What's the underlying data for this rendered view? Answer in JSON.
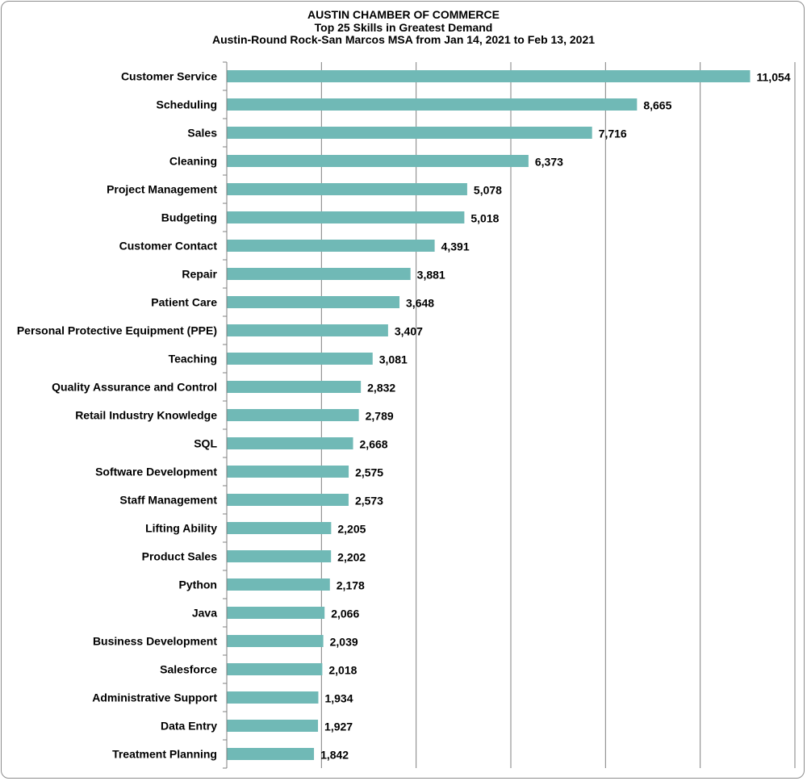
{
  "chart_data": {
    "type": "bar",
    "orientation": "horizontal",
    "title": "AUSTIN CHAMBER OF COMMERCE",
    "subtitle": "Top 25 Skills in Greatest Demand",
    "subtitle2": "Austin-Round Rock-San Marcos MSA from Jan 14, 2021 to Feb 13, 2021",
    "xlabel": "",
    "ylabel": "",
    "xlim": [
      0,
      12000
    ],
    "grid": true,
    "bar_color": "#70b9b6",
    "categories": [
      "Customer Service",
      "Scheduling",
      "Sales",
      "Cleaning",
      "Project Management",
      "Budgeting",
      "Customer Contact",
      "Repair",
      "Patient Care",
      "Personal Protective Equipment (PPE)",
      "Teaching",
      "Quality Assurance and Control",
      "Retail Industry Knowledge",
      "SQL",
      "Software Development",
      "Staff Management",
      "Lifting Ability",
      "Product Sales",
      "Python",
      "Java",
      "Business Development",
      "Salesforce",
      "Administrative Support",
      "Data Entry",
      "Treatment Planning"
    ],
    "values": [
      11054,
      8665,
      7716,
      6373,
      5078,
      5018,
      4391,
      3881,
      3648,
      3407,
      3081,
      2832,
      2789,
      2668,
      2575,
      2573,
      2205,
      2202,
      2178,
      2066,
      2039,
      2018,
      1934,
      1927,
      1842
    ],
    "value_labels": [
      "11,054",
      "8,665",
      "7,716",
      "6,373",
      "5,078",
      "5,018",
      "4,391",
      "3,881",
      "3,648",
      "3,407",
      "3,081",
      "2,832",
      "2,789",
      "2,668",
      "2,575",
      "2,573",
      "2,205",
      "2,202",
      "2,178",
      "2,066",
      "2,039",
      "2,018",
      "1,934",
      "1,927",
      "1,842"
    ]
  }
}
